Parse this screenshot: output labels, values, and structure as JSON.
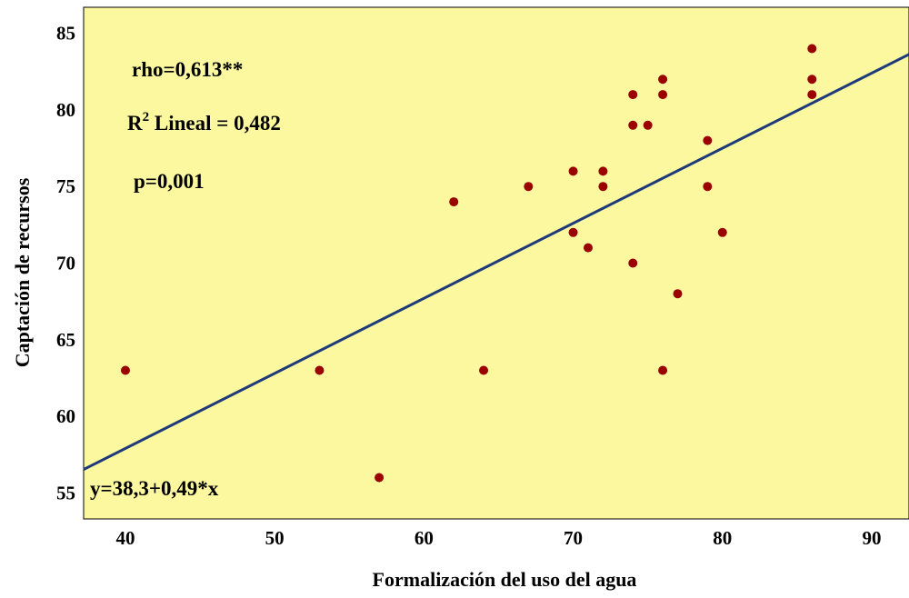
{
  "chart_data": {
    "type": "scatter",
    "title": "",
    "xlabel": "Formalización del uso del agua",
    "ylabel": "Captación de recursos",
    "xlim": [
      37.2,
      92.5
    ],
    "ylim": [
      53.3,
      86.7
    ],
    "xticks": [
      40,
      50,
      60,
      70,
      80,
      90
    ],
    "yticks": [
      55,
      60,
      65,
      70,
      75,
      80,
      85
    ],
    "grid": false,
    "background_color": "#fbf8a0",
    "point_color": "#9a0000",
    "line_color": "#1f3a7a",
    "points": [
      {
        "x": 40,
        "y": 63
      },
      {
        "x": 53,
        "y": 63
      },
      {
        "x": 57,
        "y": 56
      },
      {
        "x": 62,
        "y": 74
      },
      {
        "x": 64,
        "y": 63
      },
      {
        "x": 67,
        "y": 75
      },
      {
        "x": 70,
        "y": 76
      },
      {
        "x": 70,
        "y": 72
      },
      {
        "x": 71,
        "y": 71
      },
      {
        "x": 72,
        "y": 76
      },
      {
        "x": 72,
        "y": 75
      },
      {
        "x": 74,
        "y": 81
      },
      {
        "x": 74,
        "y": 79
      },
      {
        "x": 74,
        "y": 70
      },
      {
        "x": 75,
        "y": 79
      },
      {
        "x": 76,
        "y": 82
      },
      {
        "x": 76,
        "y": 81
      },
      {
        "x": 76,
        "y": 63
      },
      {
        "x": 77,
        "y": 68
      },
      {
        "x": 79,
        "y": 78
      },
      {
        "x": 79,
        "y": 75
      },
      {
        "x": 80,
        "y": 72
      },
      {
        "x": 86,
        "y": 84
      },
      {
        "x": 86,
        "y": 82
      },
      {
        "x": 86,
        "y": 81
      }
    ],
    "fit_line": {
      "intercept": 38.3,
      "slope": 0.49
    },
    "annotations": {
      "rho": "rho=0,613**",
      "r2_prefix": "R",
      "r2_sup": "2",
      "r2_suffix": " Lineal = 0,482",
      "p": "p=0,001",
      "equation": "y=38,3+0,49*x"
    }
  }
}
